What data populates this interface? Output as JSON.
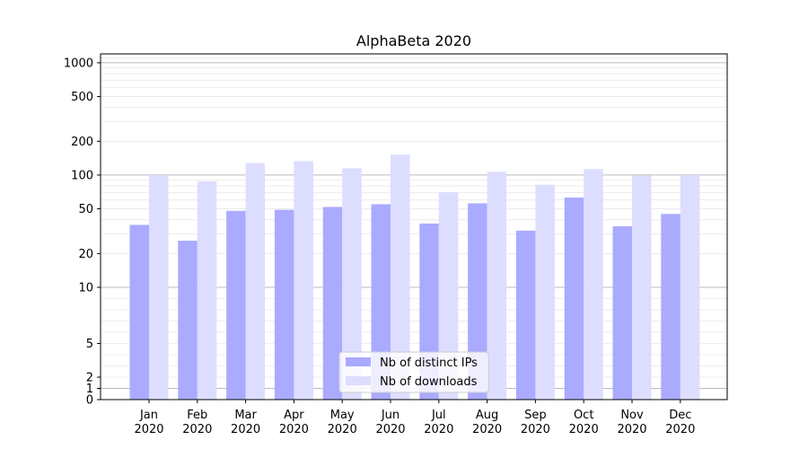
{
  "chart_data": {
    "type": "bar",
    "title": "AlphaBeta 2020",
    "xlabel": "",
    "ylabel": "",
    "yscale": "symlog",
    "ylim": [
      0,
      1200
    ],
    "grid": true,
    "legend_position": "bottom-center",
    "categories": [
      "Jan\n2020",
      "Feb\n2020",
      "Mar\n2020",
      "Apr\n2020",
      "May\n2020",
      "Jun\n2020",
      "Jul\n2020",
      "Aug\n2020",
      "Sep\n2020",
      "Oct\n2020",
      "Nov\n2020",
      "Dec\n2020"
    ],
    "y_ticks": [
      0,
      1,
      2,
      5,
      10,
      20,
      50,
      100,
      200,
      500,
      1000
    ],
    "series": [
      {
        "name": "Nb of distinct IPs",
        "color": "#aaaaff",
        "values": [
          36,
          26,
          48,
          49,
          52,
          55,
          37,
          56,
          32,
          63,
          35,
          45
        ]
      },
      {
        "name": "Nb of downloads",
        "color": "#ddddff",
        "values": [
          100,
          88,
          128,
          133,
          115,
          152,
          70,
          107,
          82,
          113,
          99,
          100
        ]
      }
    ]
  }
}
